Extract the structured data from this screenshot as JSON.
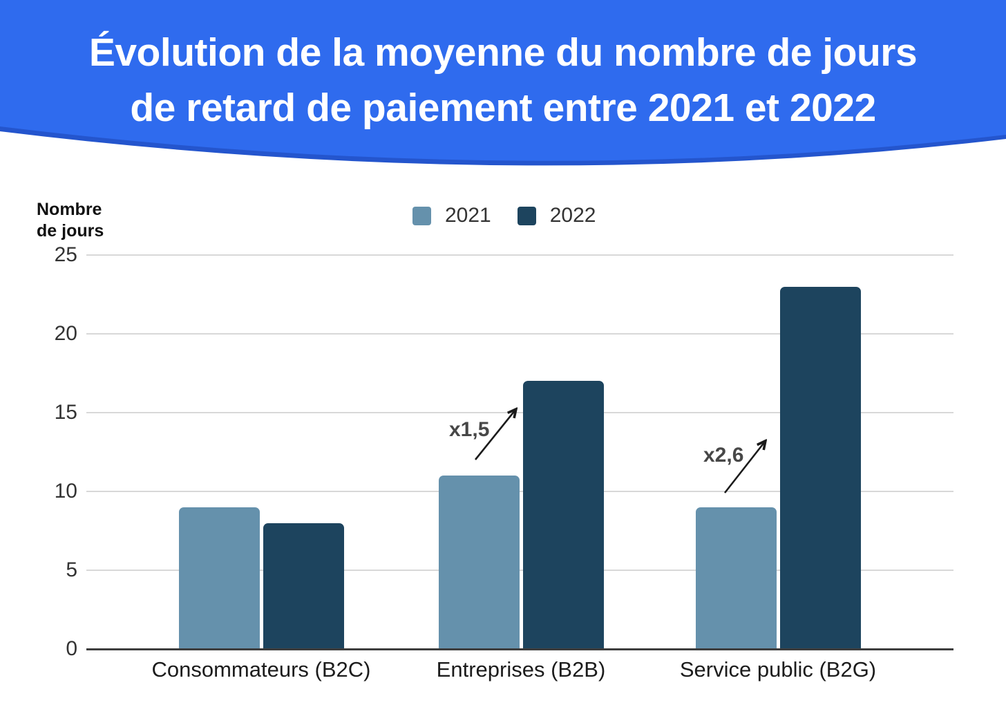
{
  "banner": {
    "title_line1": "Évolution de la moyenne du nombre de jours",
    "title_line2": "de retard de paiement entre 2021 et 2022",
    "background_color": "#2f6bee",
    "edge_shadow_color": "#2455cd",
    "text_color": "#ffffff"
  },
  "chart_data": {
    "type": "bar",
    "title": "",
    "xlabel": "",
    "ylabel": "Nombre\nde jours",
    "categories": [
      "Consommateurs (B2C)",
      "Entreprises (B2B)",
      "Service public (B2G)"
    ],
    "series": [
      {
        "name": "2021",
        "color": "#6591ac",
        "values": [
          9,
          11,
          9
        ]
      },
      {
        "name": "2022",
        "color": "#1d445e",
        "values": [
          8,
          17,
          23
        ]
      }
    ],
    "ylim": [
      0,
      25
    ],
    "yticks": [
      0,
      5,
      10,
      15,
      20,
      25
    ],
    "grid": true,
    "grid_color": "#d8d8d8",
    "axis_color": "#3d3d3d",
    "legend_position": "top-center",
    "annotations": [
      {
        "text": "x1,5",
        "category": "Entreprises (B2B)"
      },
      {
        "text": "x2,6",
        "category": "Service public (B2G)"
      }
    ]
  }
}
